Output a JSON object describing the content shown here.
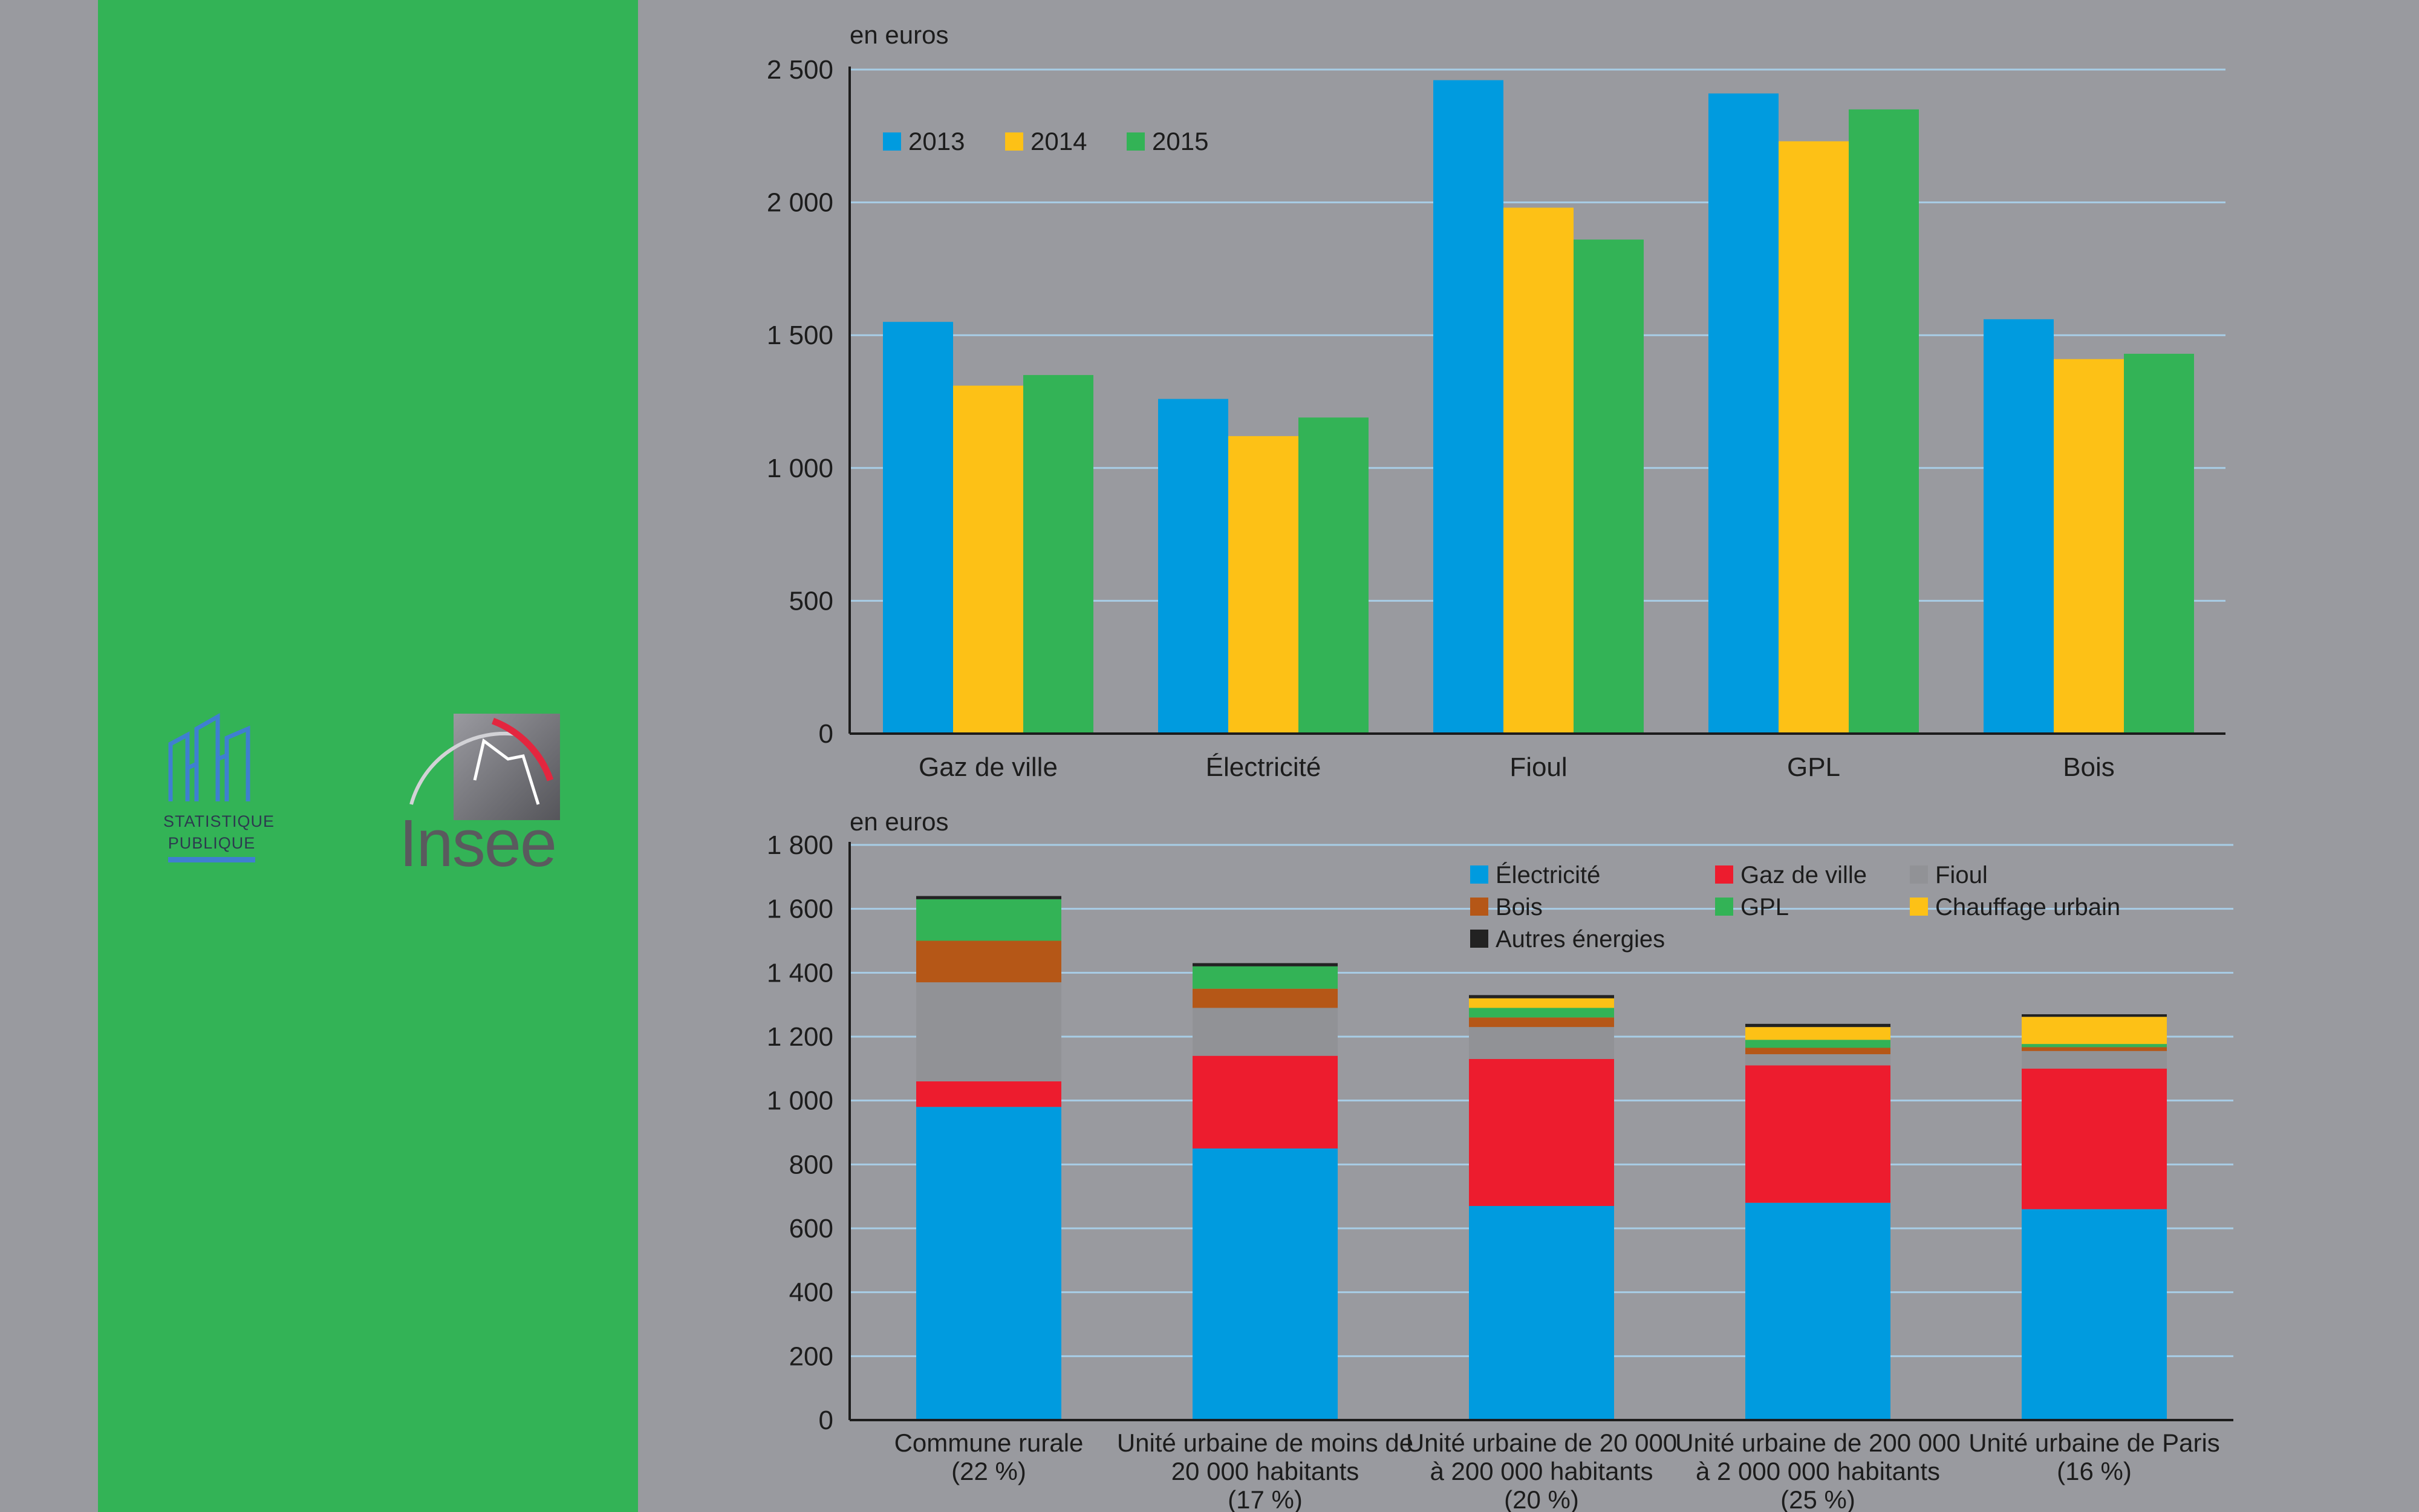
{
  "colors": {
    "blue": "#009bdf",
    "yellow": "#fdc116",
    "green": "#33b356",
    "red": "#ed1c2e",
    "grey": "#919296",
    "brown": "#b55717",
    "black": "#222222",
    "gridline": "#a8cde6"
  },
  "logos": {
    "statistique": "STATISTIQUE",
    "publique": "PUBLIQUE",
    "insee": "Insee"
  },
  "chart_data": [
    {
      "type": "bar",
      "unit_label": "en euros",
      "categories": [
        "Gaz de ville",
        "Électricité",
        "Fioul",
        "GPL",
        "Bois"
      ],
      "series": [
        {
          "name": "2013",
          "color": "#009bdf",
          "values": [
            1550,
            1260,
            2460,
            2410,
            1560
          ]
        },
        {
          "name": "2014",
          "color": "#fdc116",
          "values": [
            1310,
            1120,
            1980,
            2230,
            1410
          ]
        },
        {
          "name": "2015",
          "color": "#33b356",
          "values": [
            1350,
            1190,
            1860,
            2350,
            1430
          ]
        }
      ],
      "ylim": [
        0,
        2500
      ],
      "yticks": [
        0,
        500,
        1000,
        1500,
        2000,
        2500
      ],
      "ytick_labels": [
        "0",
        "500",
        "1 000",
        "1 500",
        "2 000",
        "2 500"
      ],
      "legend_position": "top-left",
      "grid": true
    },
    {
      "type": "bar",
      "stacked": true,
      "unit_label": "en euros",
      "categories": [
        [
          "Commune rurale",
          "(22 %)"
        ],
        [
          "Unité urbaine de moins de",
          "20 000 habitants",
          "(17 %)"
        ],
        [
          "Unité urbaine de 20 000",
          "à 200 000 habitants",
          "(20 %)"
        ],
        [
          "Unité urbaine de 200 000",
          "à 2 000 000 habitants",
          "(25 %)"
        ],
        [
          "Unité urbaine de Paris",
          "(16 %)"
        ]
      ],
      "series": [
        {
          "name": "Électricité",
          "color": "#009bdf",
          "values": [
            980,
            850,
            670,
            680,
            660
          ]
        },
        {
          "name": "Gaz de ville",
          "color": "#ed1c2e",
          "values": [
            80,
            290,
            460,
            430,
            440
          ]
        },
        {
          "name": "Fioul",
          "color": "#919296",
          "values": [
            310,
            150,
            100,
            35,
            55
          ]
        },
        {
          "name": "Bois",
          "color": "#b55717",
          "values": [
            130,
            60,
            30,
            20,
            12
          ]
        },
        {
          "name": "GPL",
          "color": "#33b356",
          "values": [
            130,
            70,
            30,
            25,
            10
          ]
        },
        {
          "name": "Chauffage urbain",
          "color": "#fdc116",
          "values": [
            0,
            0,
            30,
            40,
            85
          ]
        },
        {
          "name": "Autres énergies",
          "color": "#222222",
          "values": [
            10,
            10,
            10,
            10,
            8
          ]
        }
      ],
      "ylim": [
        0,
        1800
      ],
      "yticks": [
        0,
        200,
        400,
        600,
        800,
        1000,
        1200,
        1400,
        1600,
        1800
      ],
      "ytick_labels": [
        "0",
        "200",
        "400",
        "600",
        "800",
        "1 000",
        "1 200",
        "1 400",
        "1 600",
        "1 800"
      ],
      "legend_position": "top-right",
      "grid": true
    }
  ]
}
